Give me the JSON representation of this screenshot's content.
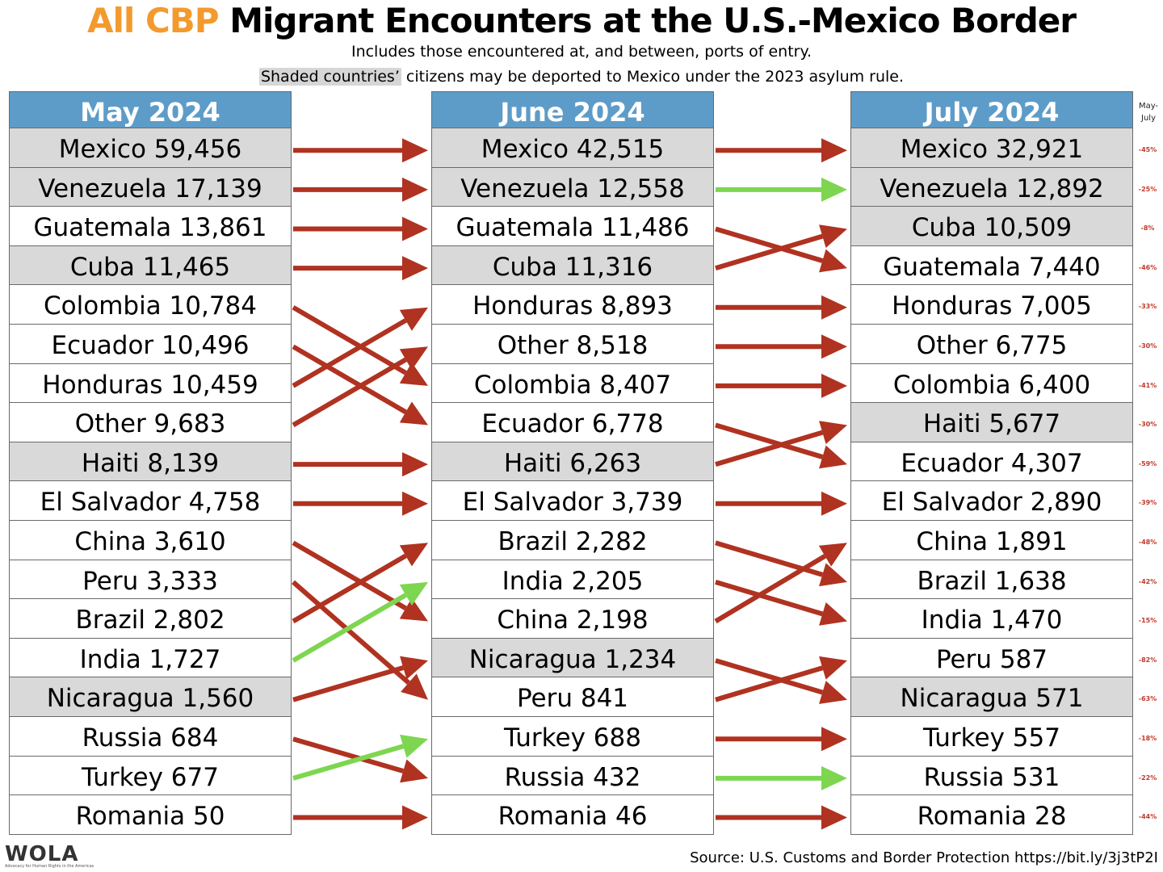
{
  "title": {
    "accent": "All CBP",
    "main": "Migrant Encounters at the U.S.-Mexico Border"
  },
  "subtitle": {
    "line1": "Includes those encountered at, and between, ports of entry.",
    "line2_highlight": "Shaded countries’",
    "line2_rest": " citizens may be deported to Mexico under the 2023 asylum rule."
  },
  "change_header": {
    "line1": "May-",
    "line2": "July"
  },
  "logo": {
    "text": "WOLA",
    "tagline": "Advocacy for Human Rights in the Americas"
  },
  "source": "Source: U.S. Customs and Border Protection https://bit.ly/3j3tP2I",
  "colors": {
    "header": "#5d9cc8",
    "shaded": "#d9d9d9",
    "arrow_down": "#b03220",
    "arrow_up": "#7ed650",
    "accent": "#f39a2e",
    "change_text": "#c0392b"
  },
  "chart_data": {
    "type": "table",
    "months": [
      "May 2024",
      "June 2024",
      "July 2024"
    ],
    "columns": [
      {
        "month": "May 2024",
        "rows": [
          {
            "country": "Mexico",
            "value": 59456,
            "label": "Mexico 59,456",
            "shaded": true
          },
          {
            "country": "Venezuela",
            "value": 17139,
            "label": "Venezuela 17,139",
            "shaded": true
          },
          {
            "country": "Guatemala",
            "value": 13861,
            "label": "Guatemala 13,861",
            "shaded": false
          },
          {
            "country": "Cuba",
            "value": 11465,
            "label": "Cuba 11,465",
            "shaded": true
          },
          {
            "country": "Colombia",
            "value": 10784,
            "label": "Colombia 10,784",
            "shaded": false
          },
          {
            "country": "Ecuador",
            "value": 10496,
            "label": "Ecuador 10,496",
            "shaded": false
          },
          {
            "country": "Honduras",
            "value": 10459,
            "label": "Honduras 10,459",
            "shaded": false
          },
          {
            "country": "Other",
            "value": 9683,
            "label": "Other 9,683",
            "shaded": false
          },
          {
            "country": "Haiti",
            "value": 8139,
            "label": "Haiti 8,139",
            "shaded": true
          },
          {
            "country": "El Salvador",
            "value": 4758,
            "label": "El Salvador 4,758",
            "shaded": false
          },
          {
            "country": "China",
            "value": 3610,
            "label": "China 3,610",
            "shaded": false
          },
          {
            "country": "Peru",
            "value": 3333,
            "label": "Peru 3,333",
            "shaded": false
          },
          {
            "country": "Brazil",
            "value": 2802,
            "label": "Brazil 2,802",
            "shaded": false
          },
          {
            "country": "India",
            "value": 1727,
            "label": "India 1,727",
            "shaded": false
          },
          {
            "country": "Nicaragua",
            "value": 1560,
            "label": "Nicaragua 1,560",
            "shaded": true
          },
          {
            "country": "Russia",
            "value": 684,
            "label": "Russia 684",
            "shaded": false
          },
          {
            "country": "Turkey",
            "value": 677,
            "label": "Turkey 677",
            "shaded": false
          },
          {
            "country": "Romania",
            "value": 50,
            "label": "Romania 50",
            "shaded": false
          }
        ]
      },
      {
        "month": "June 2024",
        "rows": [
          {
            "country": "Mexico",
            "value": 42515,
            "label": "Mexico 42,515",
            "shaded": true
          },
          {
            "country": "Venezuela",
            "value": 12558,
            "label": "Venezuela 12,558",
            "shaded": true
          },
          {
            "country": "Guatemala",
            "value": 11486,
            "label": "Guatemala 11,486",
            "shaded": false
          },
          {
            "country": "Cuba",
            "value": 11316,
            "label": "Cuba 11,316",
            "shaded": true
          },
          {
            "country": "Honduras",
            "value": 8893,
            "label": "Honduras 8,893",
            "shaded": false
          },
          {
            "country": "Other",
            "value": 8518,
            "label": "Other 8,518",
            "shaded": false
          },
          {
            "country": "Colombia",
            "value": 8407,
            "label": "Colombia 8,407",
            "shaded": false
          },
          {
            "country": "Ecuador",
            "value": 6778,
            "label": "Ecuador 6,778",
            "shaded": false
          },
          {
            "country": "Haiti",
            "value": 6263,
            "label": "Haiti 6,263",
            "shaded": true
          },
          {
            "country": "El Salvador",
            "value": 3739,
            "label": "El Salvador 3,739",
            "shaded": false
          },
          {
            "country": "Brazil",
            "value": 2282,
            "label": "Brazil 2,282",
            "shaded": false
          },
          {
            "country": "India",
            "value": 2205,
            "label": "India 2,205",
            "shaded": false
          },
          {
            "country": "China",
            "value": 2198,
            "label": "China 2,198",
            "shaded": false
          },
          {
            "country": "Nicaragua",
            "value": 1234,
            "label": "Nicaragua 1,234",
            "shaded": true
          },
          {
            "country": "Peru",
            "value": 841,
            "label": "Peru 841",
            "shaded": false
          },
          {
            "country": "Turkey",
            "value": 688,
            "label": "Turkey 688",
            "shaded": false
          },
          {
            "country": "Russia",
            "value": 432,
            "label": "Russia 432",
            "shaded": false
          },
          {
            "country": "Romania",
            "value": 46,
            "label": "Romania 46",
            "shaded": false
          }
        ]
      },
      {
        "month": "July 2024",
        "rows": [
          {
            "country": "Mexico",
            "value": 32921,
            "label": "Mexico 32,921",
            "shaded": true
          },
          {
            "country": "Venezuela",
            "value": 12892,
            "label": "Venezuela 12,892",
            "shaded": true
          },
          {
            "country": "Cuba",
            "value": 10509,
            "label": "Cuba 10,509",
            "shaded": true
          },
          {
            "country": "Guatemala",
            "value": 7440,
            "label": "Guatemala 7,440",
            "shaded": false
          },
          {
            "country": "Honduras",
            "value": 7005,
            "label": "Honduras 7,005",
            "shaded": false
          },
          {
            "country": "Other",
            "value": 6775,
            "label": "Other 6,775",
            "shaded": false
          },
          {
            "country": "Colombia",
            "value": 6400,
            "label": "Colombia 6,400",
            "shaded": false
          },
          {
            "country": "Haiti",
            "value": 5677,
            "label": "Haiti 5,677",
            "shaded": true
          },
          {
            "country": "Ecuador",
            "value": 4307,
            "label": "Ecuador 4,307",
            "shaded": false
          },
          {
            "country": "El Salvador",
            "value": 2890,
            "label": "El Salvador 2,890",
            "shaded": false
          },
          {
            "country": "China",
            "value": 1891,
            "label": "China 1,891",
            "shaded": false
          },
          {
            "country": "Brazil",
            "value": 1638,
            "label": "Brazil 1,638",
            "shaded": false
          },
          {
            "country": "India",
            "value": 1470,
            "label": "India 1,470",
            "shaded": false
          },
          {
            "country": "Peru",
            "value": 587,
            "label": "Peru 587",
            "shaded": false
          },
          {
            "country": "Nicaragua",
            "value": 571,
            "label": "Nicaragua 571",
            "shaded": true
          },
          {
            "country": "Turkey",
            "value": 557,
            "label": "Turkey 557",
            "shaded": false
          },
          {
            "country": "Russia",
            "value": 531,
            "label": "Russia 531",
            "shaded": false
          },
          {
            "country": "Romania",
            "value": 28,
            "label": "Romania 28",
            "shaded": false
          }
        ]
      }
    ],
    "may_july_change": [
      "-45%",
      "-25%",
      "-8%",
      "-46%",
      "-33%",
      "-30%",
      "-41%",
      "-30%",
      "-59%",
      "-39%",
      "-48%",
      "-42%",
      "-15%",
      "-82%",
      "-63%",
      "-18%",
      "-22%",
      "-44%"
    ]
  }
}
